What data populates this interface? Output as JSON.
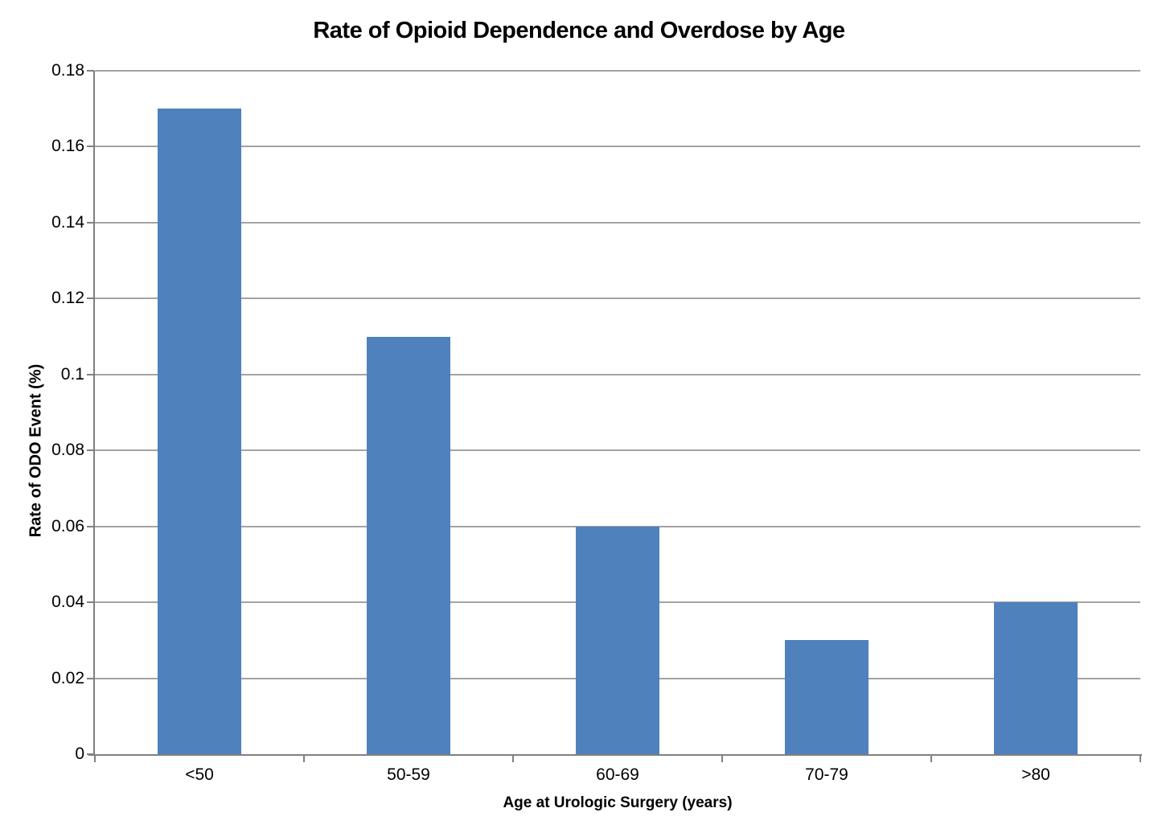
{
  "chart_data": {
    "type": "bar",
    "title": "Rate of Opioid Dependence and Overdose by Age",
    "categories": [
      "<50",
      "50-59",
      "60-69",
      "70-79",
      ">80"
    ],
    "values": [
      0.17,
      0.11,
      0.06,
      0.03,
      0.04
    ],
    "xlabel": "Age at Urologic Surgery (years)",
    "ylabel": "Rate of ODO Event (%)",
    "ylim": [
      0,
      0.18
    ],
    "ytick_step": 0.02,
    "yticks": [
      "0.18",
      "0.16",
      "0.14",
      "0.12",
      "0.1",
      "0.08",
      "0.06",
      "0.04",
      "0.02",
      "0"
    ],
    "grid": true,
    "legend": "none",
    "bar_color": "#4F81BD",
    "gridline_color": "#A3A3A3",
    "axis_color": "#808080",
    "text_color": "#000000"
  }
}
